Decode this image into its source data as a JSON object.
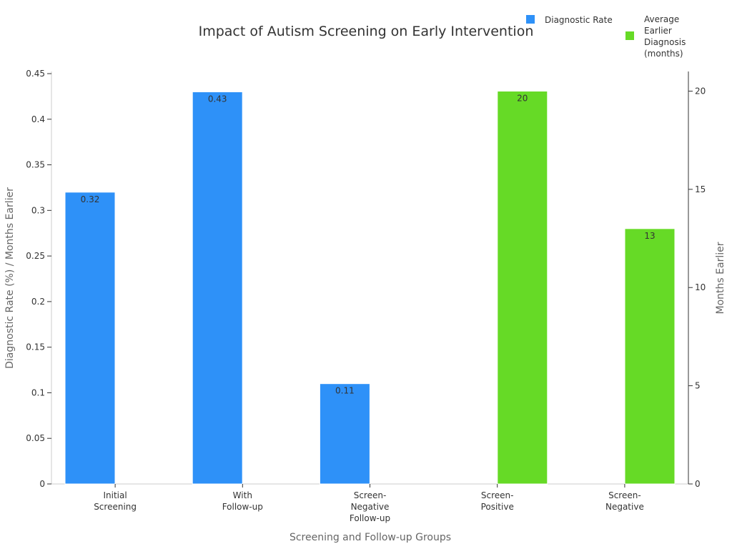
{
  "chart_data": {
    "type": "bar",
    "title": "Impact of Autism Screening on Early Intervention",
    "xlabel": "Screening and Follow-up Groups",
    "ylabel": "Diagnostic Rate (%) / Months Earlier",
    "y2label": "Months Earlier",
    "categories": [
      [
        "Initial",
        "Screening"
      ],
      [
        "With",
        "Follow-up"
      ],
      [
        "Screen-",
        "Negative",
        "Follow-up"
      ],
      [
        "Screen-",
        "Positive"
      ],
      [
        "Screen-",
        "Negative"
      ]
    ],
    "ylim": [
      0,
      0.45
    ],
    "y_ticks": [
      "0",
      "0.05",
      "0.1",
      "0.15",
      "0.2",
      "0.25",
      "0.3",
      "0.35",
      "0.4",
      "0.45"
    ],
    "y2lim": [
      0,
      21
    ],
    "y2_ticks": [
      "0",
      "5",
      "10",
      "15",
      "20"
    ],
    "legend_position": "top-right",
    "series": [
      {
        "name": "Diagnostic Rate",
        "axis": "left",
        "color": "#2e91f8",
        "values": [
          0.32,
          0.43,
          0.11,
          null,
          null
        ],
        "labels": [
          "0.32",
          "0.43",
          "0.11",
          "",
          ""
        ]
      },
      {
        "name": [
          "Average",
          "Earlier",
          "Diagnosis",
          "(months)"
        ],
        "axis": "right",
        "color": "#66da26",
        "values": [
          null,
          null,
          null,
          20,
          13
        ],
        "labels": [
          "",
          "",
          "",
          "20",
          "13"
        ]
      }
    ]
  }
}
